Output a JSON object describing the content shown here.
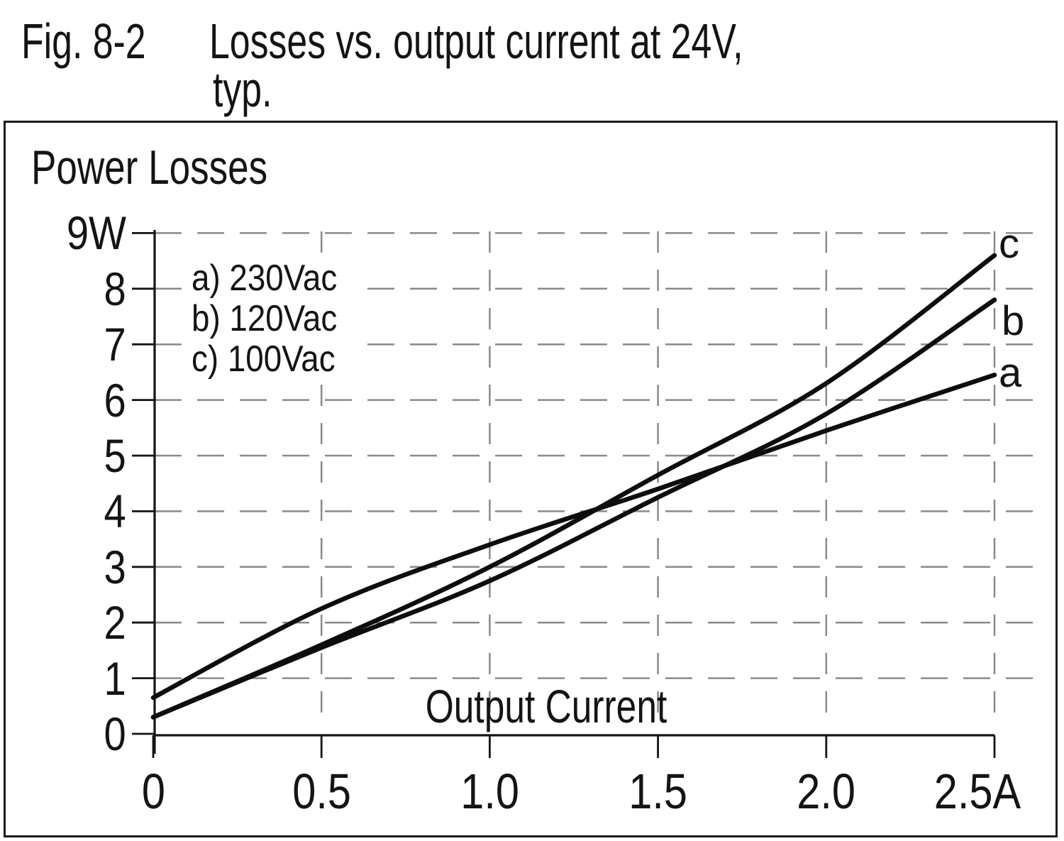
{
  "figure": {
    "label": "Fig. 8-2",
    "title_line1": "Losses vs. output current at 24V,",
    "title_line2": "typ."
  },
  "chart_data": {
    "type": "line",
    "title": "Losses vs. output current at 24V, typ.",
    "xlabel": "Output Current",
    "ylabel": "Power Losses",
    "x_unit": "A",
    "y_unit": "W",
    "xlim": [
      0,
      2.5
    ],
    "ylim": [
      0,
      9
    ],
    "grid": "dashed-gray-both-axes",
    "legend_position": "inside-top-left",
    "x_ticks": {
      "labels": [
        "0",
        "0.5",
        "1.0",
        "1.5",
        "2.0",
        "2.5A"
      ],
      "values": [
        0,
        0.5,
        1.0,
        1.5,
        2.0,
        2.5
      ],
      "label_dx": [
        0,
        0,
        0,
        0,
        0,
        -24
      ]
    },
    "y_ticks": {
      "labels": [
        "9W",
        "8",
        "7",
        "6",
        "5",
        "4",
        "3",
        "2",
        "1",
        "0"
      ],
      "values": [
        9,
        8,
        7,
        6,
        5,
        4,
        3,
        2,
        1,
        0
      ]
    },
    "x": [
      0,
      0.5,
      1.0,
      1.5,
      2.0,
      2.5
    ],
    "series": [
      {
        "name": "a",
        "legend_label": "a) 230Vac",
        "condition": "230Vac",
        "values": [
          0.65,
          2.25,
          3.4,
          4.4,
          5.45,
          6.45
        ]
      },
      {
        "name": "b",
        "legend_label": "b) 120Vac",
        "condition": "120Vac",
        "values": [
          0.3,
          1.55,
          2.75,
          4.25,
          5.75,
          7.8
        ]
      },
      {
        "name": "c",
        "legend_label": "c) 100Vac",
        "condition": "100Vac",
        "values": [
          0.3,
          1.6,
          3.0,
          4.65,
          6.3,
          8.6
        ]
      }
    ],
    "colors": {
      "curves": "#0d0d0d",
      "axes": "#141414",
      "grid": "#8a8a8a",
      "text": "#141414",
      "background": "#ffffff"
    }
  }
}
